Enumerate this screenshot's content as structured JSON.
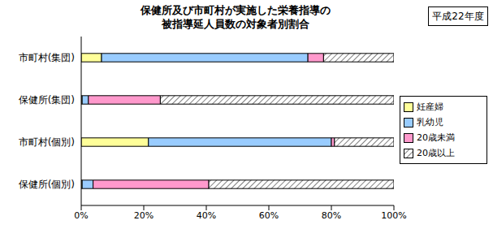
{
  "chart_data": {
    "type": "bar",
    "title": "保健所及び市町村が実施した栄養指導の\n被指導延人員数の対象者別割合",
    "subtitle": "平成22年度",
    "orientation": "horizontal",
    "stacked": true,
    "grid": false,
    "legend": "right",
    "categories": [
      "市町村(集団)",
      "保健所(集団)",
      "市町村(個別)",
      "保健所(個別)"
    ],
    "series": [
      {
        "name": "妊産婦",
        "color": "#ffff99",
        "values": [
          6.5,
          0.3,
          21.5,
          0.3
        ]
      },
      {
        "name": "乳幼児",
        "color": "#99ccff",
        "values": [
          66,
          2,
          58.5,
          3.5
        ]
      },
      {
        "name": "20歳未満",
        "color": "#ff99cc",
        "values": [
          5,
          23,
          1,
          37
        ]
      },
      {
        "name": "20歳以上",
        "color": "#ffffff",
        "values": [
          22.5,
          74.7,
          19,
          59.2
        ]
      }
    ],
    "xlim": [
      0,
      100
    ],
    "xticks": [
      {
        "value": 0,
        "label": "0%"
      },
      {
        "value": 20,
        "label": "20%"
      },
      {
        "value": 40,
        "label": "40%"
      },
      {
        "value": 60,
        "label": "60%"
      },
      {
        "value": 80,
        "label": "80%"
      },
      {
        "value": 100,
        "label": "100%"
      }
    ]
  }
}
